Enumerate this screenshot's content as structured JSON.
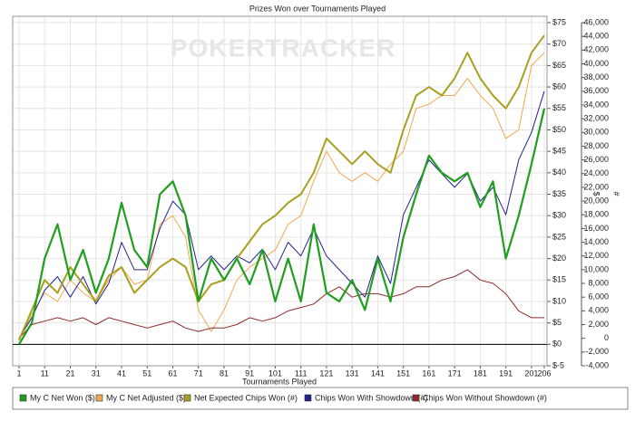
{
  "chart_data": {
    "type": "line",
    "title": "Prizes Won over Tournaments Played",
    "watermark": "POKERTRACKER",
    "x_label": "Tournaments Played",
    "y_label": "$",
    "y2_label": "#",
    "grid": true,
    "legend": "bottom",
    "x": [
      1,
      6,
      11,
      16,
      21,
      26,
      31,
      36,
      41,
      46,
      51,
      56,
      61,
      66,
      71,
      76,
      81,
      86,
      91,
      96,
      101,
      106,
      111,
      116,
      121,
      126,
      131,
      136,
      141,
      146,
      151,
      156,
      161,
      166,
      171,
      176,
      181,
      186,
      191,
      196,
      201,
      206
    ],
    "xlim": [
      1,
      206
    ],
    "xticks": [
      1,
      11,
      21,
      31,
      41,
      51,
      61,
      71,
      81,
      91,
      101,
      111,
      121,
      131,
      141,
      151,
      161,
      171,
      181,
      191,
      201,
      206
    ],
    "ylim": [
      -5,
      75
    ],
    "yticks": [
      {
        "value": -5,
        "label": "$-5"
      },
      {
        "value": 0,
        "label": "$0"
      },
      {
        "value": 5,
        "label": "$5"
      },
      {
        "value": 10,
        "label": "$10"
      },
      {
        "value": 15,
        "label": "$15"
      },
      {
        "value": 20,
        "label": "$20"
      },
      {
        "value": 25,
        "label": "$25"
      },
      {
        "value": 30,
        "label": "$30"
      },
      {
        "value": 35,
        "label": "$35"
      },
      {
        "value": 40,
        "label": "$40"
      },
      {
        "value": 45,
        "label": "$45"
      },
      {
        "value": 50,
        "label": "$50"
      },
      {
        "value": 55,
        "label": "$55"
      },
      {
        "value": 60,
        "label": "$60"
      },
      {
        "value": 65,
        "label": "$65"
      },
      {
        "value": 70,
        "label": "$70"
      },
      {
        "value": 75,
        "label": "$75"
      }
    ],
    "y2lim": [
      -4000,
      46000
    ],
    "y2ticks": [
      {
        "value": -4000,
        "label": "-4,000"
      },
      {
        "value": -2000,
        "label": "-2,000"
      },
      0,
      {
        "value": 2000,
        "label": "2,000"
      },
      {
        "value": 4000,
        "label": "4,000"
      },
      {
        "value": 6000,
        "label": "6,000"
      },
      {
        "value": 8000,
        "label": "8,000"
      },
      {
        "value": 10000,
        "label": "10,000"
      },
      {
        "value": 12000,
        "label": "12,000"
      },
      {
        "value": 14000,
        "label": "14,000"
      },
      {
        "value": 16000,
        "label": "16,000"
      },
      {
        "value": 18000,
        "label": "18,000"
      },
      {
        "value": 20000,
        "label": "20,000"
      },
      {
        "value": 22000,
        "label": "22,000"
      },
      {
        "value": 24000,
        "label": "24,000"
      },
      {
        "value": 26000,
        "label": "26,000"
      },
      {
        "value": 28000,
        "label": "28,000"
      },
      {
        "value": 30000,
        "label": "30,000"
      },
      {
        "value": 32000,
        "label": "32,000"
      },
      {
        "value": 34000,
        "label": "34,000"
      },
      {
        "value": 36000,
        "label": "36,000"
      },
      {
        "value": 38000,
        "label": "38,000"
      },
      {
        "value": 40000,
        "label": "40,000"
      },
      {
        "value": 42000,
        "label": "42,000"
      },
      {
        "value": 44000,
        "label": "44,000"
      },
      {
        "value": 46000,
        "label": "46,000"
      }
    ],
    "series": [
      {
        "name": "My C Net Won ($)",
        "color": "#1f9e1f",
        "width": 2.2,
        "values": [
          0,
          5,
          20,
          28,
          15,
          22,
          12,
          20,
          33,
          22,
          18,
          35,
          38,
          30,
          10,
          20,
          15,
          20,
          14,
          22,
          10,
          20,
          10,
          28,
          12,
          10,
          15,
          8,
          20,
          10,
          25,
          35,
          44,
          40,
          38,
          40,
          32,
          38,
          20,
          30,
          42,
          55
        ]
      },
      {
        "name": "My C Net Adjusted ($)",
        "color": "#f0a850",
        "width": 1,
        "values": [
          1,
          7,
          12,
          10,
          15,
          12,
          10,
          15,
          18,
          14,
          15,
          28,
          30,
          25,
          8,
          3,
          8,
          15,
          18,
          20,
          22,
          28,
          30,
          38,
          45,
          40,
          38,
          40,
          38,
          42,
          45,
          55,
          56,
          58,
          58,
          62,
          58,
          55,
          48,
          50,
          65,
          68
        ]
      },
      {
        "name": "Net Expected Chips Won (#)",
        "color": "#a8a020",
        "width": 2,
        "values": [
          1,
          8,
          15,
          12,
          18,
          14,
          10,
          16,
          18,
          12,
          15,
          18,
          20,
          18,
          10,
          14,
          15,
          20,
          24,
          28,
          30,
          33,
          35,
          40,
          48,
          45,
          42,
          45,
          42,
          40,
          50,
          58,
          60,
          58,
          62,
          68,
          62,
          58,
          55,
          60,
          68,
          72
        ]
      },
      {
        "name": "Chips Won With Showdown (#)",
        "color": "#22228a",
        "width": 1,
        "axis": "y2",
        "values": [
          0,
          3000,
          7000,
          9000,
          6000,
          9000,
          5000,
          8000,
          14000,
          10000,
          10000,
          16000,
          20000,
          18000,
          10000,
          12000,
          10000,
          12000,
          11000,
          13000,
          10000,
          14000,
          12000,
          16000,
          12000,
          10000,
          8000,
          6000,
          12000,
          8000,
          18000,
          22000,
          26000,
          24000,
          22000,
          24000,
          20000,
          22000,
          18000,
          26000,
          30000,
          36000
        ]
      },
      {
        "name": "Chips Won Without Showdown (#)",
        "color": "#8b2a2a",
        "width": 1,
        "axis": "y2",
        "values": [
          0,
          2000,
          2500,
          3000,
          2500,
          3000,
          2000,
          3000,
          2500,
          2000,
          1500,
          2000,
          2500,
          1500,
          1000,
          1500,
          1500,
          2000,
          3000,
          2500,
          3000,
          4000,
          4500,
          5000,
          6500,
          7500,
          6000,
          6500,
          6500,
          6000,
          6500,
          7500,
          7500,
          8500,
          9000,
          10000,
          8500,
          8000,
          6500,
          4000,
          3000,
          3000
        ]
      }
    ]
  }
}
